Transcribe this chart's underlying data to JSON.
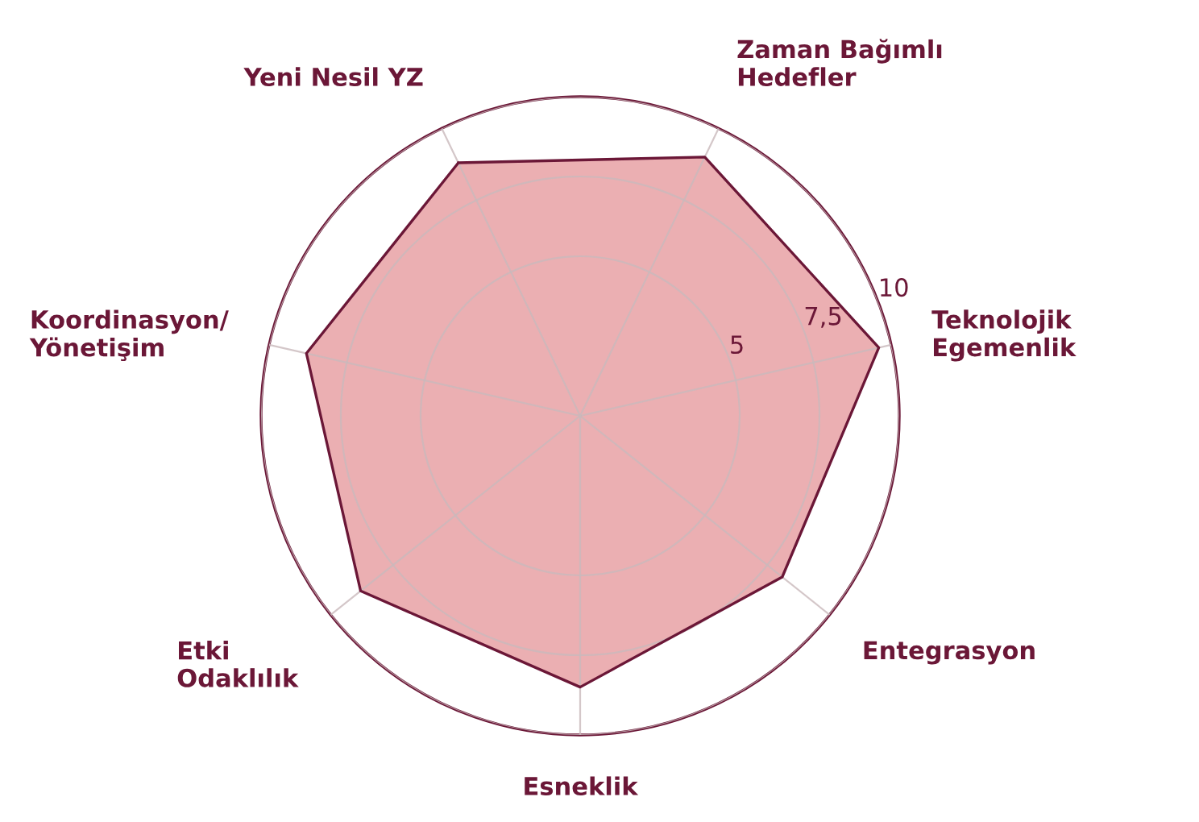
{
  "chart_data": {
    "type": "radar",
    "categories": [
      "Yeni Nesil YZ",
      "Zaman Bağımlı\nHedefler",
      "Teknolojik\nEgemenlik",
      "Entegrasyon",
      "Esneklik",
      "Etki\nOdaklılık",
      "Koordinasyon/\nYönetişim"
    ],
    "series": [
      {
        "color": "#e8a1a5",
        "values": [
          8.8,
          9.0,
          9.6,
          8.1,
          8.5,
          8.8,
          8.8
        ]
      }
    ],
    "ylim": [
      0,
      10
    ],
    "yticks": [
      5,
      {
        "value": 7.5,
        "label": "7,5"
      },
      10
    ],
    "grid": true
  }
}
